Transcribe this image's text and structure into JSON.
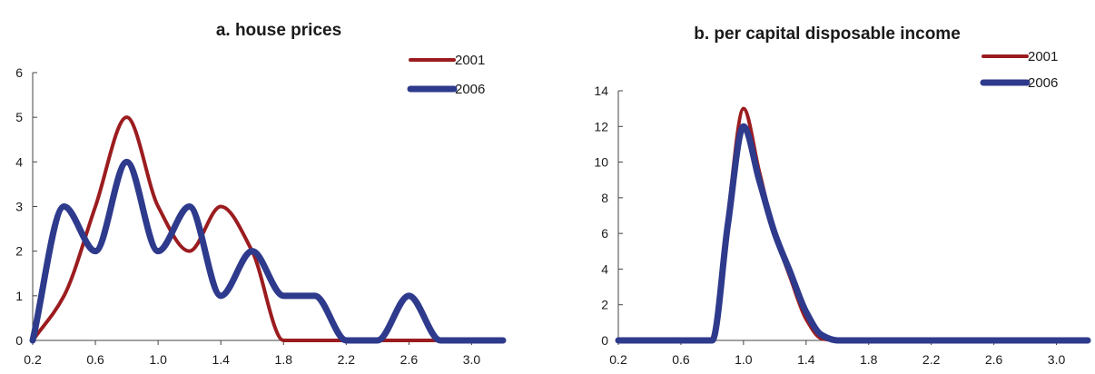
{
  "colors": {
    "series_2001": "#9b1c1f",
    "series_2006": "#2e3a8c",
    "axis": "#444444",
    "text": "#1a1a1a"
  },
  "chart_data": [
    {
      "type": "line",
      "title": "a. house prices",
      "xlabel": "",
      "ylabel": "",
      "x_ticks": [
        "0.2",
        "0.6",
        "1.0",
        "1.4",
        "1.8",
        "2.2",
        "2.6",
        "3.0"
      ],
      "y_ticks": [
        "0",
        "1",
        "2",
        "3",
        "4",
        "5",
        "6"
      ],
      "xlim": [
        0.2,
        3.2
      ],
      "ylim": [
        0,
        6
      ],
      "grid": false,
      "legend": "top-right",
      "series": [
        {
          "name": "2001",
          "x": [
            0.2,
            0.4,
            0.6,
            0.8,
            1.0,
            1.2,
            1.4,
            1.6,
            1.8,
            2.0,
            2.2,
            2.4,
            2.6,
            2.8,
            3.0,
            3.2
          ],
          "values": [
            0,
            1,
            3,
            5,
            3,
            2,
            3,
            2,
            0,
            0,
            0,
            0,
            0,
            0,
            0,
            0
          ]
        },
        {
          "name": "2006",
          "x": [
            0.2,
            0.4,
            0.6,
            0.8,
            1.0,
            1.2,
            1.4,
            1.6,
            1.8,
            2.0,
            2.2,
            2.4,
            2.6,
            2.8,
            3.0,
            3.2
          ],
          "values": [
            0,
            3,
            2,
            4,
            2,
            3,
            1,
            2,
            1,
            1,
            0,
            0,
            1,
            0,
            0,
            0
          ]
        }
      ]
    },
    {
      "type": "line",
      "title": "b. per capital disposable income",
      "xlabel": "",
      "ylabel": "",
      "x_ticks": [
        "0.2",
        "0.6",
        "1.0",
        "1.4",
        "1.8",
        "2.2",
        "2.6",
        "3.0"
      ],
      "y_ticks": [
        "0",
        "2",
        "4",
        "6",
        "8",
        "10",
        "12",
        "14"
      ],
      "xlim": [
        0.2,
        3.2
      ],
      "ylim": [
        0,
        14
      ],
      "grid": false,
      "legend": "top-right",
      "series": [
        {
          "name": "2001",
          "x": [
            0.2,
            0.6,
            0.7,
            0.8,
            0.9,
            1.0,
            1.1,
            1.2,
            1.3,
            1.4,
            1.5,
            1.6,
            1.7,
            1.8,
            2.2,
            2.6,
            3.0,
            3.2
          ],
          "values": [
            0,
            0,
            0,
            0,
            7,
            13,
            9.5,
            6,
            3.5,
            1.2,
            0.1,
            0,
            0,
            0,
            0,
            0,
            0,
            0
          ]
        },
        {
          "name": "2006",
          "x": [
            0.2,
            0.6,
            0.7,
            0.8,
            0.9,
            1.0,
            1.1,
            1.2,
            1.3,
            1.4,
            1.5,
            1.6,
            1.7,
            1.8,
            2.2,
            2.6,
            3.0,
            3.2
          ],
          "values": [
            0,
            0,
            0,
            0,
            6.5,
            12,
            9,
            6,
            3.8,
            1.6,
            0.3,
            0,
            0,
            0,
            0,
            0,
            0,
            0
          ]
        }
      ]
    }
  ]
}
